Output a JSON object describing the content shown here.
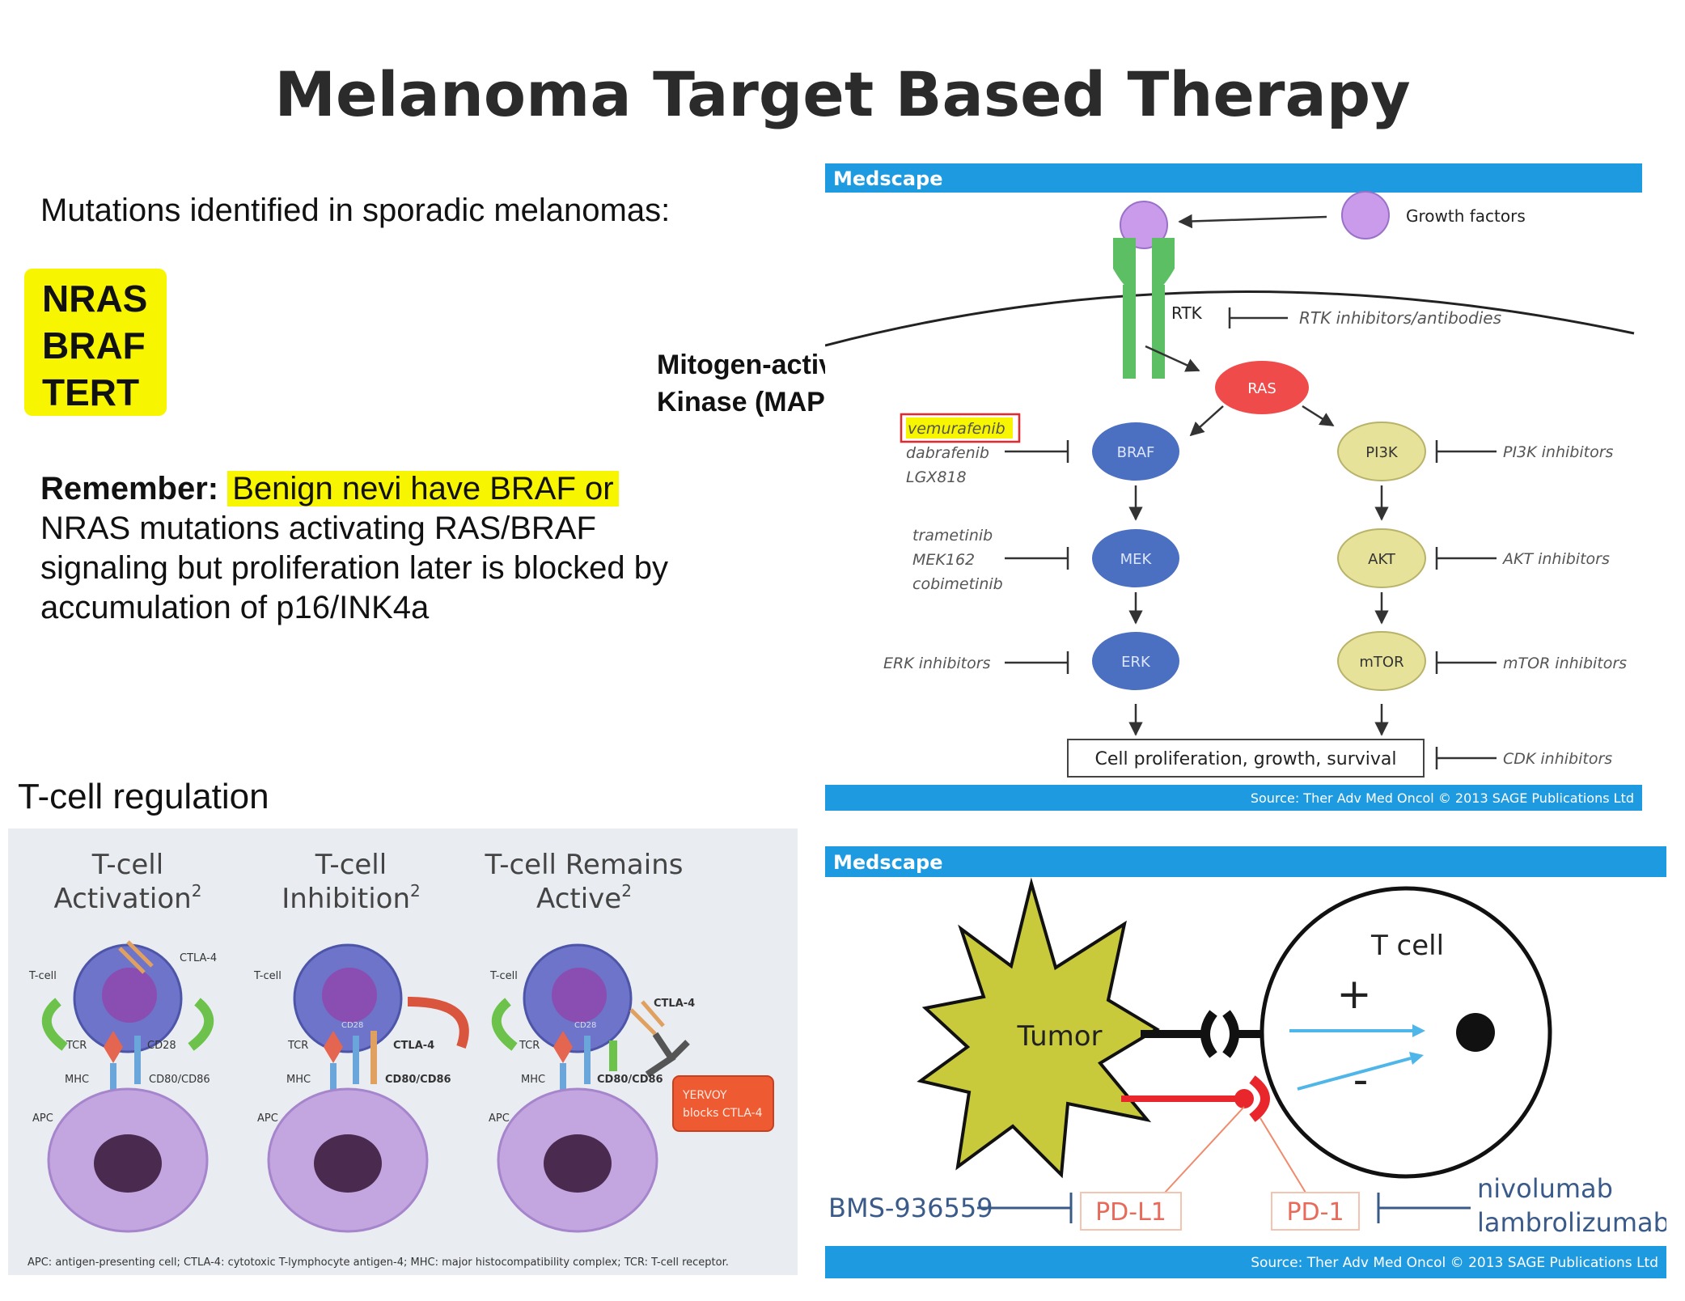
{
  "title": "Melanoma Target Based Therapy",
  "mutations": {
    "heading": "Mutations identified in sporadic melanomas:",
    "genes": [
      "NRAS",
      "BRAF",
      "TERT"
    ]
  },
  "remember": {
    "label": "Remember:",
    "highlighted": "Benign nevi have BRAF or",
    "rest": "NRAS mutations activating RAS/BRAF signaling but proliferation later is blocked by accumulation of p16/INK4a"
  },
  "tcell_heading": "T-cell regulation",
  "mapk_label": [
    "Mitogen-activated Protein",
    "Kinase (MAPK) Pathway"
  ],
  "mapk": {
    "header": "Medscape",
    "growth_factors": "Growth factors",
    "rtk": "RTK",
    "rtk_inhibitors": "RTK inhibitors/antibodies",
    "ras": "RAS",
    "braf": "BRAF",
    "mek": "MEK",
    "erk": "ERK",
    "pi3k": "PI3K",
    "akt": "AKT",
    "mtor": "mTOR",
    "braf_drugs": [
      "vemurafenib",
      "dabrafenib",
      "LGX818"
    ],
    "mek_drugs": [
      "trametinib",
      "MEK162",
      "cobimetinib"
    ],
    "erk_inhibitors": "ERK inhibitors",
    "pi3k_inhibitors": "PI3K inhibitors",
    "akt_inhibitors": "AKT inhibitors",
    "mtor_inhibitors": "mTOR inhibitors",
    "outcome": "Cell proliferation, growth, survival",
    "cdk_inhibitors": "CDK inhibitors",
    "source": "Source: Ther Adv Med Oncol © 2013 SAGE Publications Ltd"
  },
  "tcell": {
    "titles": [
      [
        "T-cell",
        "Activation"
      ],
      [
        "T-cell",
        "Inhibition"
      ],
      [
        "T-cell Remains",
        "Active"
      ]
    ],
    "sup": "2",
    "tcell": "T-cell",
    "apc": "APC",
    "tcr": "TCR",
    "mhc": "MHC",
    "cd28": "CD28",
    "ctla4": "CTLA-4",
    "cd80": "CD80/CD86",
    "yervoy": [
      "YERVOY",
      "blocks CTLA-4"
    ],
    "footnote": "APC: antigen-presenting cell; CTLA-4: cytotoxic T-lymphocyte antigen-4; MHC: major histocompatibility complex; TCR: T-cell receptor."
  },
  "pd": {
    "header": "Medscape",
    "tumor": "Tumor",
    "tcell": "T cell",
    "plus": "+",
    "minus": "-",
    "bms": "BMS-936559",
    "pdl1": "PD-L1",
    "pd1": "PD-1",
    "nivolumab": "nivolumab",
    "lambrolizumab": "lambrolizumab",
    "source": "Source: Ther Adv Med Oncol © 2013 SAGE Publications Ltd"
  }
}
